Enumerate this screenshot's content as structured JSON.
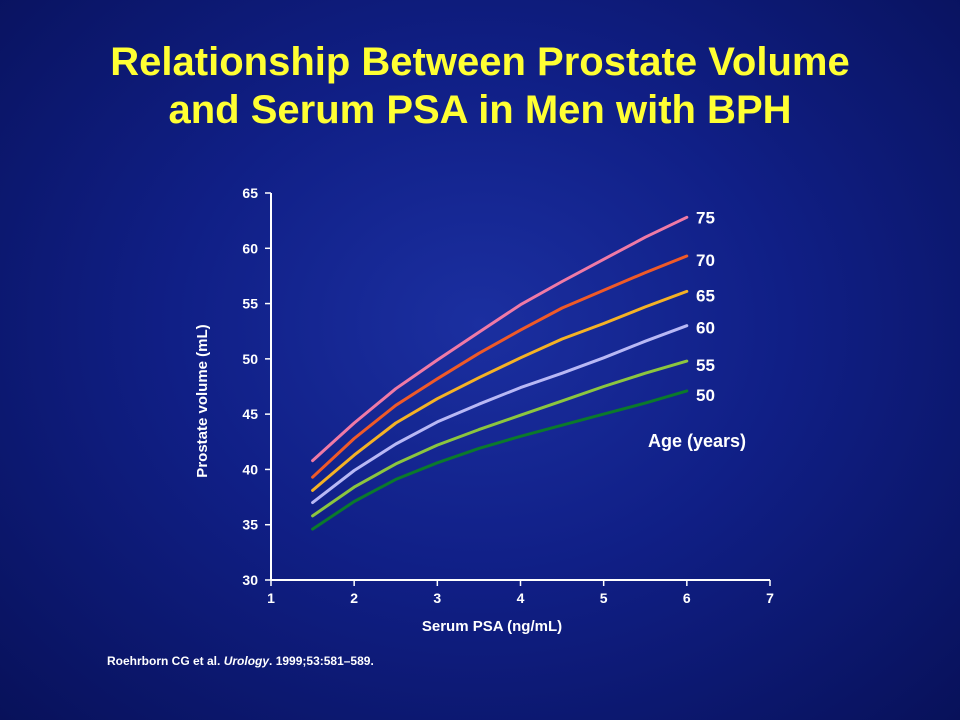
{
  "title": {
    "line1": "Relationship Between Prostate Volume",
    "line2": "and Serum PSA in Men with BPH"
  },
  "citation": {
    "authors": "Roehrborn CG et al. ",
    "journal": "Urology",
    "details": ". 1999;53:581–589."
  },
  "colors": {
    "background": "#101f86",
    "title": "#ffff33",
    "text": "#ffffff",
    "axis": "#ffffff"
  },
  "chart_data": {
    "type": "line",
    "title": "",
    "xlabel": "Serum PSA (ng/mL)",
    "ylabel": "Prostate volume (mL)",
    "xlim": [
      1,
      7
    ],
    "ylim": [
      30,
      65
    ],
    "xticks": [
      "1",
      "2",
      "3",
      "4",
      "5",
      "6",
      "7"
    ],
    "yticks": [
      "30",
      "35",
      "40",
      "45",
      "50",
      "55",
      "60",
      "65"
    ],
    "grid": false,
    "legend_title": "Age (years)",
    "x": [
      1.5,
      2.0,
      2.5,
      3.0,
      3.5,
      4.0,
      4.5,
      5.0,
      5.5,
      6.0
    ],
    "series": [
      {
        "name": "75",
        "color": "#f07aa6",
        "values": [
          40.8,
          44.2,
          47.3,
          49.9,
          52.4,
          54.9,
          57.0,
          59.0,
          61.0,
          62.8
        ]
      },
      {
        "name": "70",
        "color": "#f05a28",
        "values": [
          39.3,
          42.8,
          45.8,
          48.2,
          50.5,
          52.6,
          54.6,
          56.2,
          57.8,
          59.3
        ]
      },
      {
        "name": "65",
        "color": "#f5b225",
        "values": [
          38.1,
          41.3,
          44.2,
          46.4,
          48.3,
          50.1,
          51.8,
          53.2,
          54.7,
          56.1
        ]
      },
      {
        "name": "60",
        "color": "#b8b8f5",
        "values": [
          37.0,
          39.9,
          42.3,
          44.3,
          45.9,
          47.4,
          48.7,
          50.1,
          51.6,
          53.0
        ]
      },
      {
        "name": "55",
        "color": "#8cc63f",
        "values": [
          35.8,
          38.4,
          40.5,
          42.2,
          43.6,
          44.9,
          46.2,
          47.5,
          48.7,
          49.8
        ]
      },
      {
        "name": "50",
        "color": "#0b7a2b",
        "values": [
          34.6,
          37.1,
          39.1,
          40.6,
          41.9,
          43.0,
          44.0,
          45.0,
          46.0,
          47.1
        ]
      }
    ]
  }
}
